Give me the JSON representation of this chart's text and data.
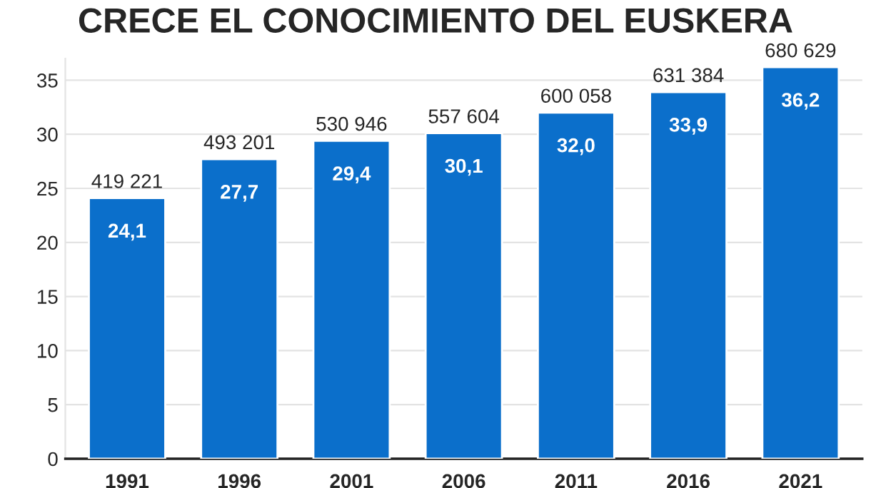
{
  "chart_data": {
    "type": "bar",
    "title": "CRECE EL CONOCIMIENTO DEL EUSKERA",
    "categories": [
      "1991",
      "1996",
      "2001",
      "2006",
      "2011",
      "2016",
      "2021"
    ],
    "values": [
      24.1,
      27.7,
      29.4,
      30.1,
      32.0,
      33.9,
      36.2
    ],
    "value_labels": [
      "24,1",
      "27,7",
      "29,4",
      "30,1",
      "32,0",
      "33,9",
      "36,2"
    ],
    "color": "#0b6fcb",
    "ylim": [
      0,
      37
    ],
    "yticks": [
      0,
      5,
      10,
      15,
      20,
      25,
      30,
      35
    ],
    "grid": "y",
    "annotations": [
      {
        "text": "419 221",
        "x": "1991",
        "y": 24.1
      },
      {
        "text": "493 201",
        "x": "1996",
        "y": 27.7
      },
      {
        "text": "530 946",
        "x": "2001",
        "y": 29.4
      },
      {
        "text": "557 604",
        "x": "2006",
        "y": 30.1
      },
      {
        "text": "600 058",
        "x": "2011",
        "y": 32.0
      },
      {
        "text": "631 384",
        "x": "2016",
        "y": 33.9
      },
      {
        "text": "680 629",
        "x": "2021",
        "y": 36.2
      }
    ]
  }
}
